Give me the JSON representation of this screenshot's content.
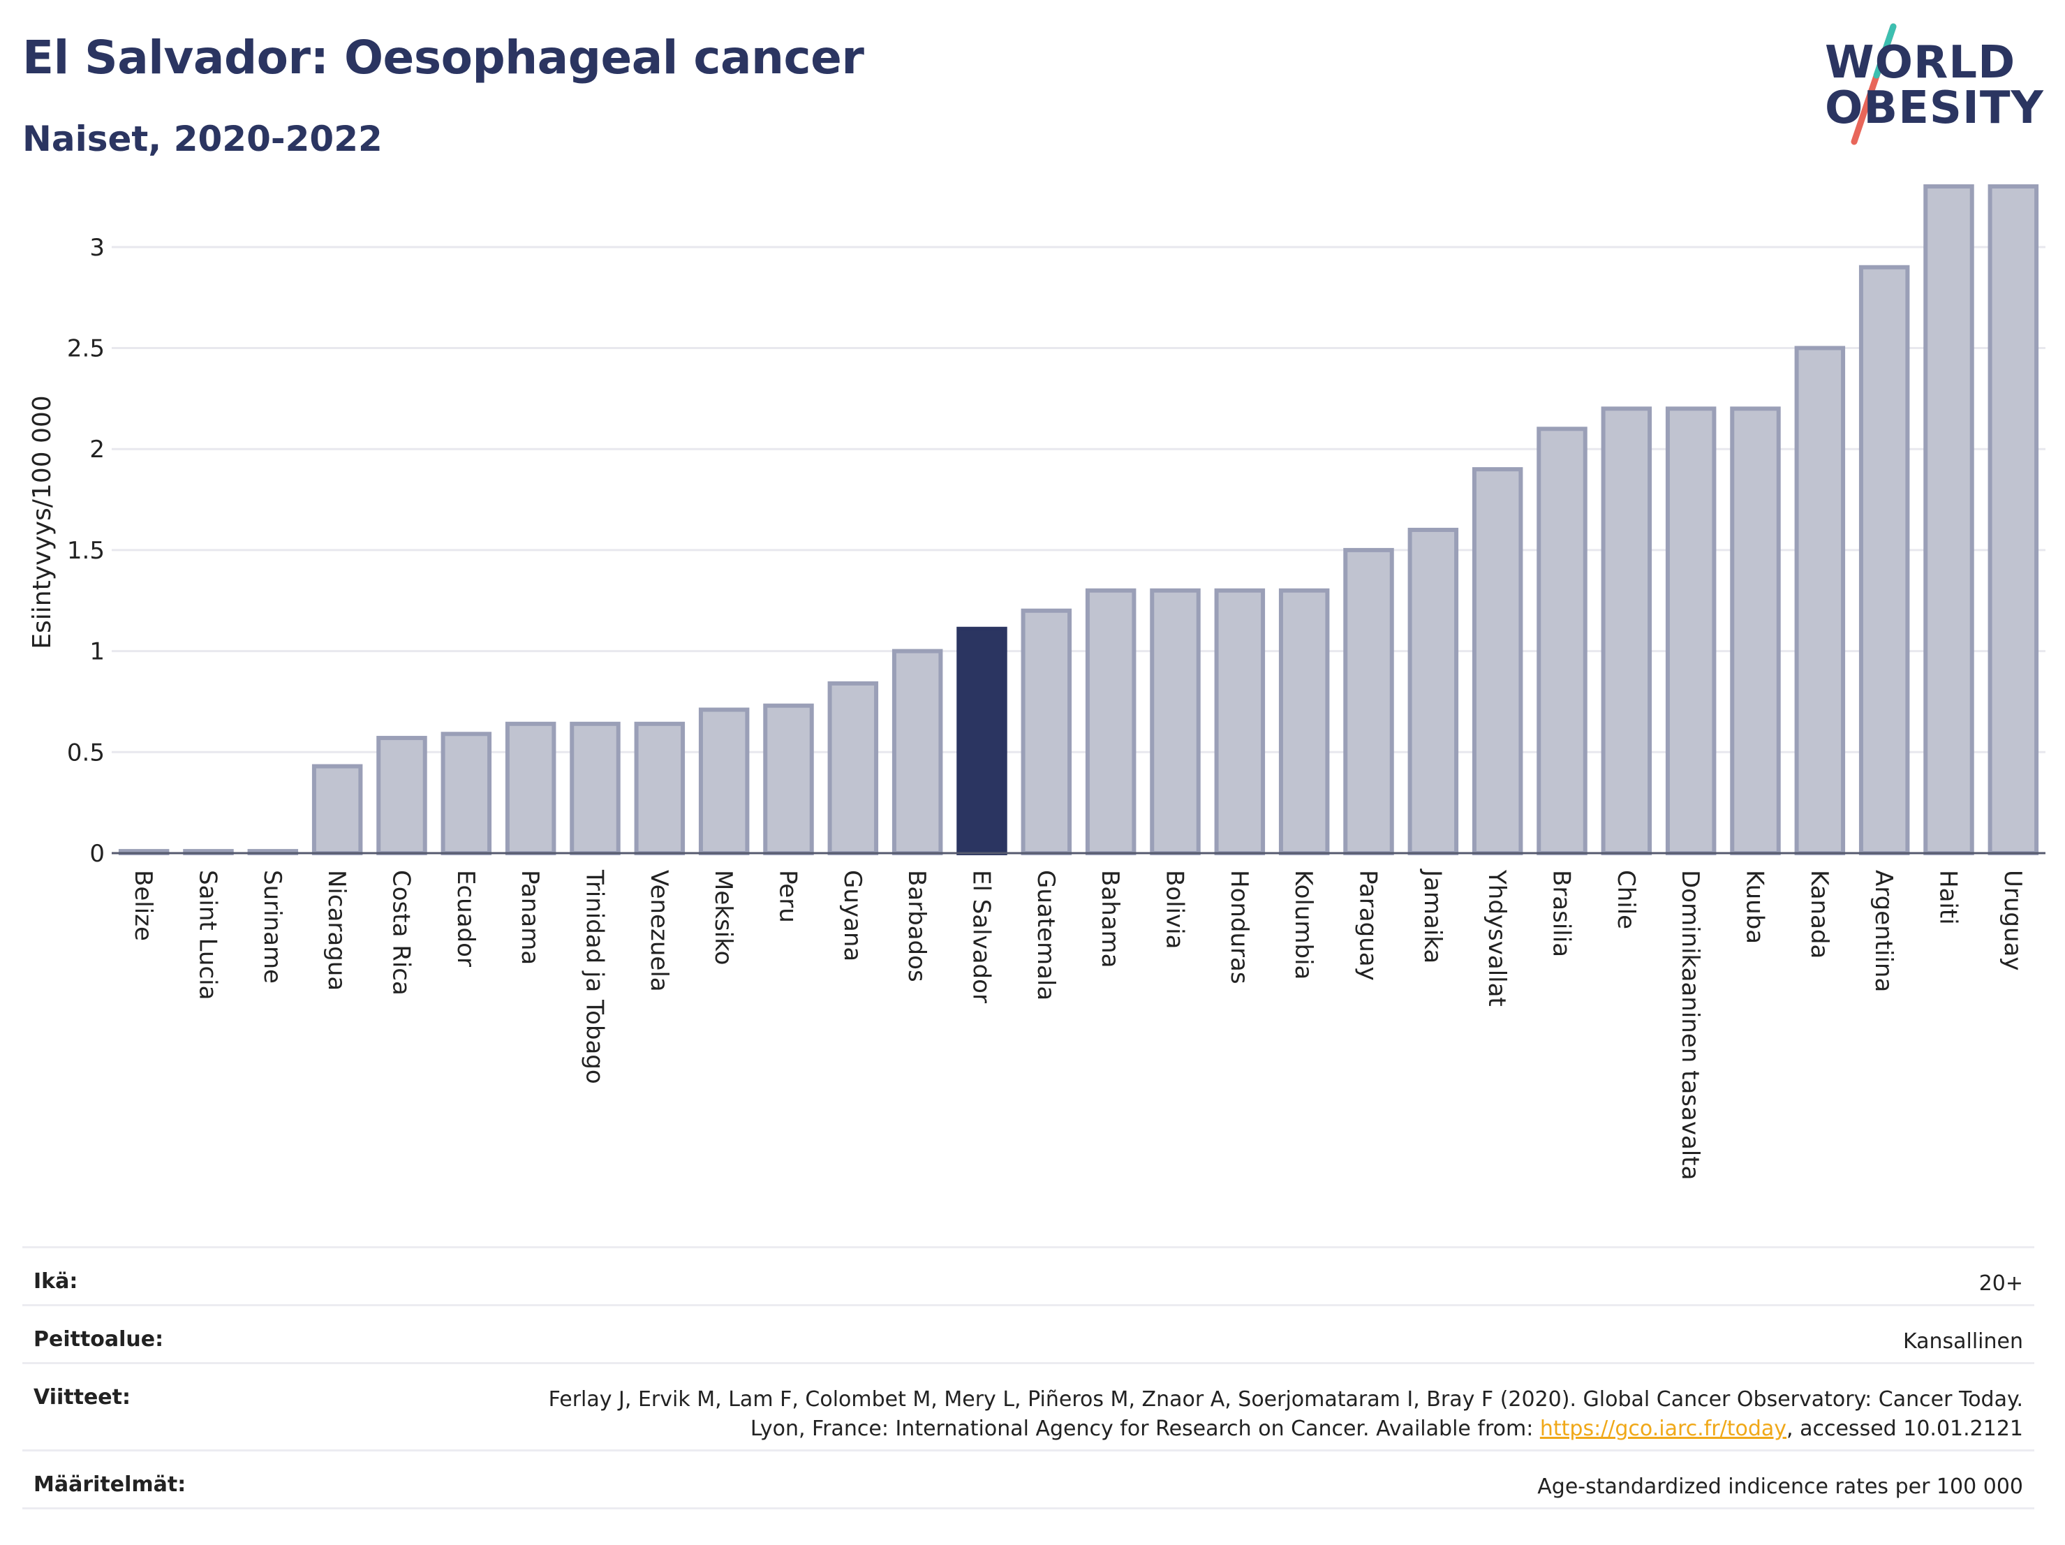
{
  "header": {
    "title": "El Salvador: Oesophageal cancer",
    "subtitle": "Naiset, 2020-2022"
  },
  "logo": {
    "line1": "WORLD",
    "line2": "OBESITY",
    "slash_colors": [
      "#3cbfb0",
      "#e8665a"
    ]
  },
  "colors": {
    "highlight": "#2b3561",
    "bar_fill": "#c0c3d0",
    "bar_stroke": "#9a9fb7",
    "grid": "#e8e8ee",
    "axis": "#555a6e"
  },
  "chart_data": {
    "type": "bar",
    "title": "",
    "xlabel": "",
    "ylabel": "Esiintyvyys/100 000",
    "ylim": [
      0,
      3.35
    ],
    "yticks": [
      0,
      0.5,
      1,
      1.5,
      2,
      2.5,
      3
    ],
    "ytick_labels": [
      "0",
      "0.5",
      "1",
      "1.5",
      "2",
      "2.5",
      "3"
    ],
    "grid": true,
    "highlight": "El Salvador",
    "categories": [
      "Belize",
      "Saint Lucia",
      "Suriname",
      "Nicaragua",
      "Costa Rica",
      "Ecuador",
      "Panama",
      "Trinidad ja Tobago",
      "Venezuela",
      "Meksiko",
      "Peru",
      "Guyana",
      "Barbados",
      "El Salvador",
      "Guatemala",
      "Bahama",
      "Bolivia",
      "Honduras",
      "Kolumbia",
      "Paraguay",
      "Jamaika",
      "Yhdysvallat",
      "Brasilia",
      "Chile",
      "Dominikaaninen tasavalta",
      "Kuuba",
      "Kanada",
      "Argentiina",
      "Haiti",
      "Uruguay"
    ],
    "values": [
      0.01,
      0.01,
      0.01,
      0.43,
      0.57,
      0.59,
      0.64,
      0.64,
      0.64,
      0.71,
      0.73,
      0.84,
      1.0,
      1.11,
      1.2,
      1.3,
      1.3,
      1.3,
      1.3,
      1.5,
      1.6,
      1.9,
      2.1,
      2.2,
      2.2,
      2.2,
      2.5,
      2.9,
      3.3,
      3.3
    ]
  },
  "info": {
    "age_label": "Ikä:",
    "age_value": "20+",
    "coverage_label": "Peittoalue:",
    "coverage_value": "Kansallinen",
    "references_label": "Viitteet:",
    "references_text": "Ferlay J, Ervik M, Lam F, Colombet M, Mery L, Piñeros M, Znaor A, Soerjomataram I, Bray F (2020). Global Cancer Observatory: Cancer Today. Lyon, France: International Agency for Research on Cancer. Available from: ",
    "references_link": "https://gco.iarc.fr/today",
    "references_suffix": ", accessed 10.01.2121",
    "definitions_label": "Määritelmät:",
    "definitions_value": "Age-standardized indicence rates per 100 000"
  }
}
